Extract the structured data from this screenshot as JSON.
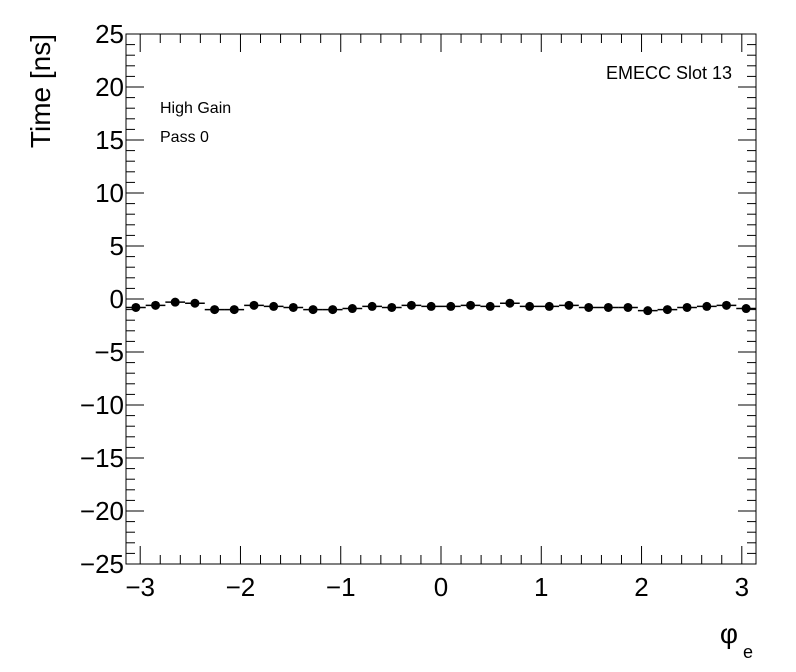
{
  "chart_data": {
    "type": "scatter",
    "title": "",
    "xlabel": "φ",
    "xlabel_sub": "e",
    "ylabel": "Time [ns]",
    "xlim": [
      -3.1416,
      3.1416
    ],
    "ylim": [
      -25,
      25
    ],
    "x_ticks": [
      -3,
      -2,
      -1,
      0,
      1,
      2,
      3
    ],
    "x_tick_labels": [
      "−3",
      "−2",
      "−1",
      "0",
      "1",
      "2",
      "3"
    ],
    "y_ticks": [
      -25,
      -20,
      -15,
      -10,
      -5,
      0,
      5,
      10,
      15,
      20,
      25
    ],
    "y_tick_labels": [
      "−25",
      "−20",
      "−15",
      "−10",
      "−5",
      "0",
      "5",
      "10",
      "15",
      "20",
      "25"
    ],
    "grid": false,
    "legend": "none",
    "annotations": [
      "High Gain",
      "Pass 0",
      "EMECC Slot 13"
    ],
    "marker_color": "#000000",
    "series": [
      {
        "x": [
          -3.043,
          -2.847,
          -2.651,
          -2.454,
          -2.258,
          -2.062,
          -1.865,
          -1.669,
          -1.473,
          -1.276,
          -1.08,
          -0.884,
          -0.687,
          -0.491,
          -0.295,
          -0.098,
          0.098,
          0.295,
          0.491,
          0.687,
          0.884,
          1.08,
          1.276,
          1.473,
          1.669,
          1.865,
          2.062,
          2.258,
          2.454,
          2.651,
          2.847,
          3.043
        ],
        "y": [
          -0.8,
          -0.6,
          -0.3,
          -0.4,
          -1.0,
          -1.0,
          -0.6,
          -0.7,
          -0.8,
          -1.0,
          -1.0,
          -0.9,
          -0.7,
          -0.8,
          -0.6,
          -0.7,
          -0.7,
          -0.6,
          -0.7,
          -0.4,
          -0.7,
          -0.7,
          -0.6,
          -0.8,
          -0.8,
          -0.8,
          -1.1,
          -1.0,
          -0.8,
          -0.7,
          -0.6,
          -0.9
        ]
      }
    ]
  }
}
